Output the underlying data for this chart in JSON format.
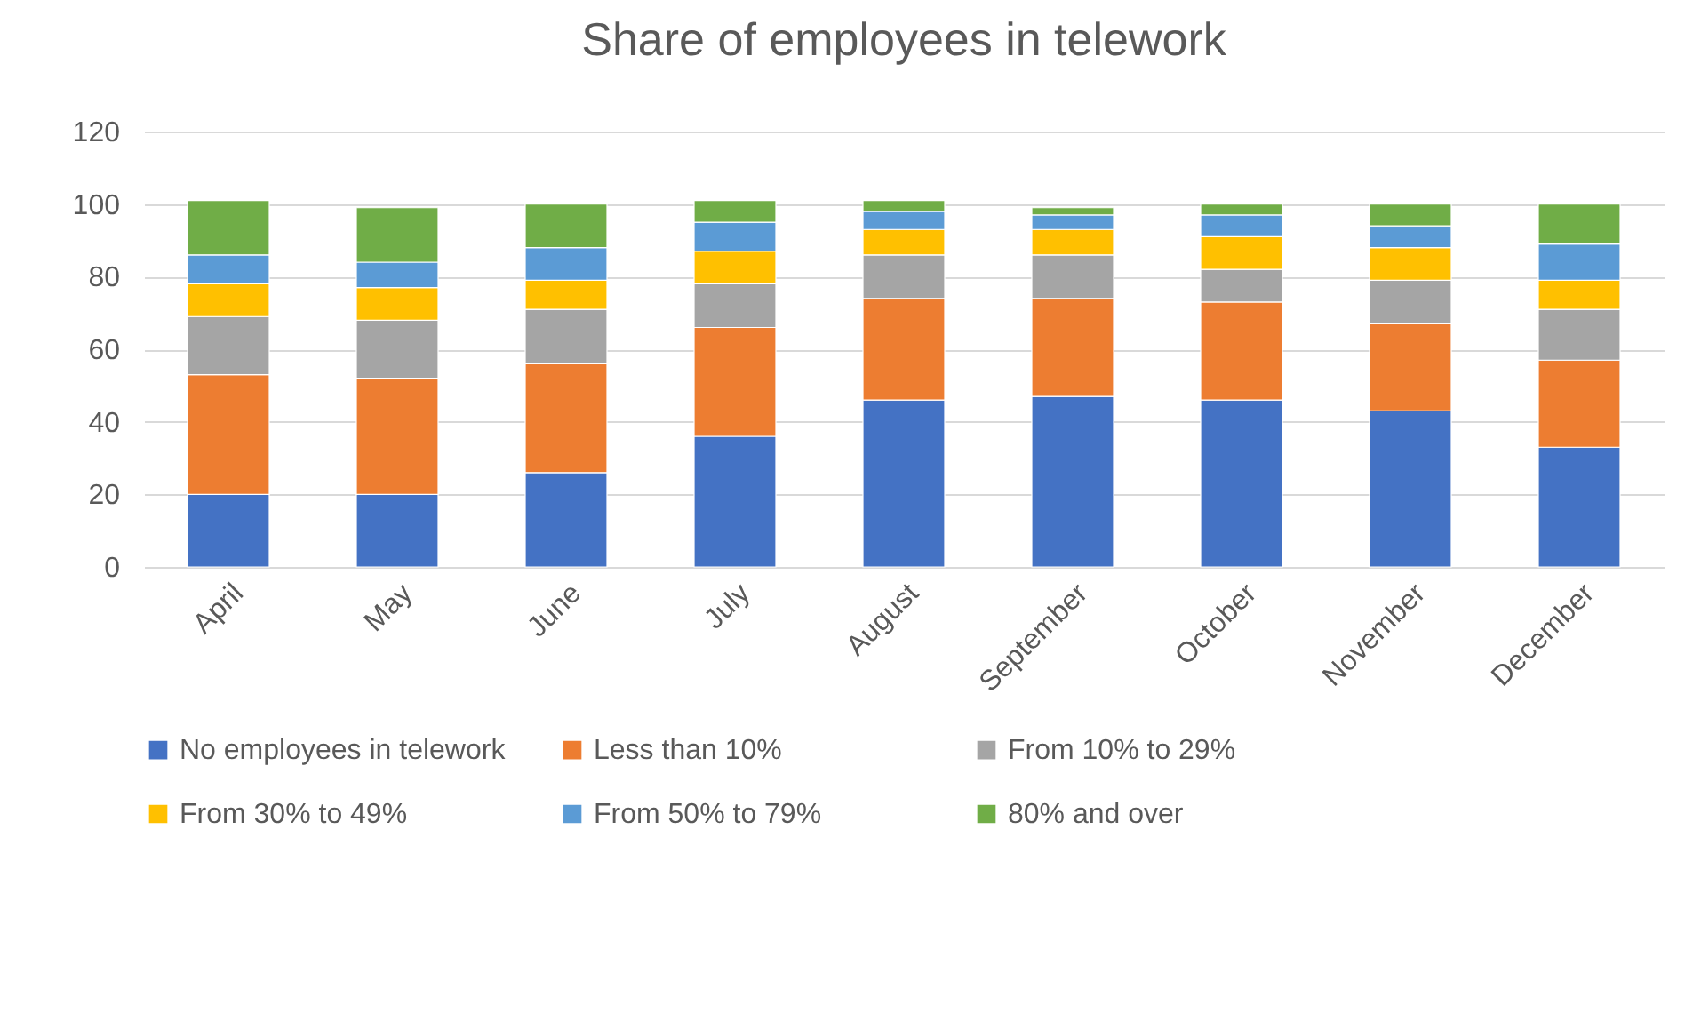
{
  "chart_data": {
    "type": "bar",
    "stacked": true,
    "title": "Share of employees in telework",
    "categories": [
      "April",
      "May",
      "June",
      "July",
      "August",
      "September",
      "October",
      "November",
      "December"
    ],
    "series": [
      {
        "name": "No employees in telework",
        "color": "#4472c4",
        "values": [
          20,
          20,
          26,
          36,
          46,
          47,
          46,
          43,
          33
        ]
      },
      {
        "name": "Less than 10%",
        "color": "#ed7d31",
        "values": [
          33,
          32,
          30,
          30,
          28,
          27,
          27,
          24,
          24
        ]
      },
      {
        "name": "From 10% to 29%",
        "color": "#a5a5a5",
        "values": [
          16,
          16,
          15,
          12,
          12,
          12,
          9,
          12,
          14
        ]
      },
      {
        "name": "From 30% to 49%",
        "color": "#ffc000",
        "values": [
          9,
          9,
          8,
          9,
          7,
          7,
          9,
          9,
          8
        ]
      },
      {
        "name": "From 50% to 79%",
        "color": "#5b9bd5",
        "values": [
          8,
          7,
          9,
          8,
          5,
          4,
          6,
          6,
          10
        ]
      },
      {
        "name": "80% and over",
        "color": "#70ad47",
        "values": [
          15,
          15,
          12,
          6,
          3,
          2,
          3,
          6,
          11
        ]
      }
    ],
    "ylim": [
      0,
      120
    ],
    "yticks": [
      0,
      20,
      40,
      60,
      80,
      100,
      120
    ],
    "grid": "y",
    "legend": "bottom"
  }
}
